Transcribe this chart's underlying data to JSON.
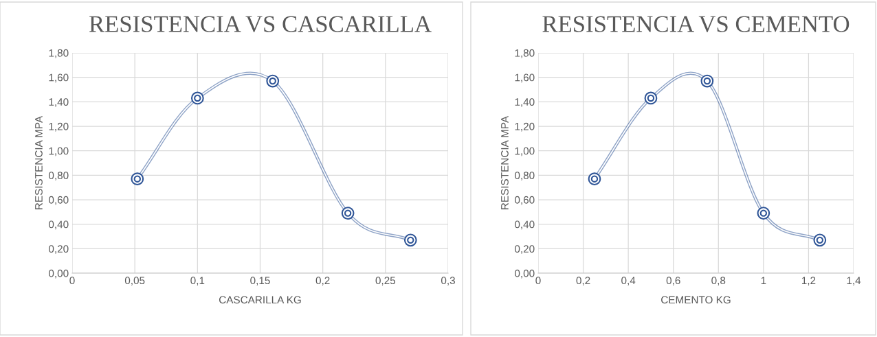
{
  "chart_data": [
    {
      "type": "line",
      "title": "RESISTENCIA VS CASCARILLA",
      "xlabel": "CASCARILLA KG",
      "ylabel": "RESISTENCIA MPA",
      "x": [
        0.052,
        0.1,
        0.16,
        0.22,
        0.27
      ],
      "series": [
        {
          "color": "#2f5597",
          "values": [
            0.77,
            1.43,
            1.57,
            0.49,
            0.27
          ]
        }
      ],
      "xlim": [
        0,
        0.3
      ],
      "xticks": [
        0,
        {
          "value": 0.05,
          "label": "0,05"
        },
        {
          "value": 0.1,
          "label": "0,1"
        },
        {
          "value": 0.15,
          "label": "0,15"
        },
        {
          "value": 0.2,
          "label": "0,2"
        },
        {
          "value": 0.25,
          "label": "0,25"
        },
        {
          "value": 0.3,
          "label": "0,3"
        }
      ],
      "ylim": [
        0,
        1.8
      ],
      "yticks": [
        {
          "value": 0,
          "label": "0,00"
        },
        {
          "value": 0.2,
          "label": "0,20"
        },
        {
          "value": 0.4,
          "label": "0,40"
        },
        {
          "value": 0.6,
          "label": "0,60"
        },
        {
          "value": 0.8,
          "label": "0,80"
        },
        {
          "value": 1.0,
          "label": "1,00"
        },
        {
          "value": 1.2,
          "label": "1,20"
        },
        {
          "value": 1.4,
          "label": "1,40"
        },
        {
          "value": 1.6,
          "label": "1,60"
        },
        {
          "value": 1.8,
          "label": "1,80"
        }
      ],
      "grid": true,
      "marker": "circle",
      "line_style": "solid",
      "legend": false
    },
    {
      "type": "line",
      "title": "RESISTENCIA VS CEMENTO",
      "xlabel": "CEMENTO KG",
      "ylabel": "RESISTENCIA MPA",
      "x": [
        0.25,
        0.5,
        0.75,
        1.0,
        1.25
      ],
      "series": [
        {
          "color": "#2f5597",
          "values": [
            0.77,
            1.43,
            1.57,
            0.49,
            0.27
          ]
        }
      ],
      "xlim": [
        0,
        1.4
      ],
      "xticks": [
        0,
        {
          "value": 0.2,
          "label": "0,2"
        },
        {
          "value": 0.4,
          "label": "0,4"
        },
        {
          "value": 0.6,
          "label": "0,6"
        },
        {
          "value": 0.8,
          "label": "0,8"
        },
        1,
        {
          "value": 1.2,
          "label": "1,2"
        },
        {
          "value": 1.4,
          "label": "1,4"
        }
      ],
      "ylim": [
        0,
        1.8
      ],
      "yticks": [
        {
          "value": 0,
          "label": "0,00"
        },
        {
          "value": 0.2,
          "label": "0,20"
        },
        {
          "value": 0.4,
          "label": "0,40"
        },
        {
          "value": 0.6,
          "label": "0,60"
        },
        {
          "value": 0.8,
          "label": "0,80"
        },
        {
          "value": 1.0,
          "label": "1,00"
        },
        {
          "value": 1.2,
          "label": "1,20"
        },
        {
          "value": 1.4,
          "label": "1,40"
        },
        {
          "value": 1.6,
          "label": "1,60"
        },
        {
          "value": 1.8,
          "label": "1,80"
        }
      ],
      "grid": true,
      "marker": "circle",
      "line_style": "solid",
      "legend": false
    }
  ]
}
